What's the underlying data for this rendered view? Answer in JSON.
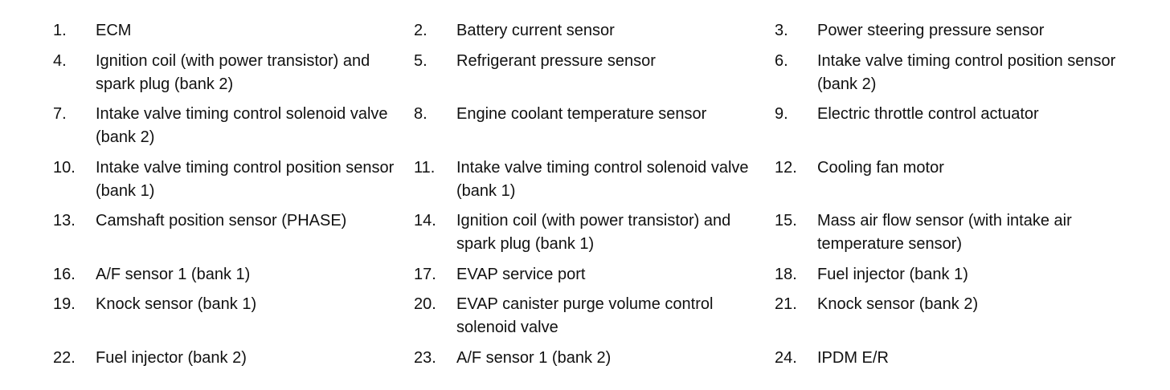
{
  "legend": {
    "items": [
      {
        "number": "1.",
        "label": "ECM"
      },
      {
        "number": "2.",
        "label": "Battery current sensor"
      },
      {
        "number": "3.",
        "label": "Power steering pressure sensor"
      },
      {
        "number": "4.",
        "label": "Ignition coil (with power transistor) and spark plug (bank 2)"
      },
      {
        "number": "5.",
        "label": "Refrigerant pressure sensor"
      },
      {
        "number": "6.",
        "label": "Intake valve timing control position sensor (bank 2)"
      },
      {
        "number": "7.",
        "label": "Intake valve timing control solenoid valve (bank 2)"
      },
      {
        "number": "8.",
        "label": "Engine coolant temperature sensor"
      },
      {
        "number": "9.",
        "label": "Electric throttle control actuator"
      },
      {
        "number": "10.",
        "label": "Intake valve timing control position sensor (bank 1)"
      },
      {
        "number": "11.",
        "label": "Intake valve timing control solenoid valve (bank 1)"
      },
      {
        "number": "12.",
        "label": "Cooling fan motor"
      },
      {
        "number": "13.",
        "label": "Camshaft position sensor (PHASE)"
      },
      {
        "number": "14.",
        "label": "Ignition coil (with power transistor) and spark plug (bank 1)"
      },
      {
        "number": "15.",
        "label": "Mass air flow sensor (with intake air temperature sensor)"
      },
      {
        "number": "16.",
        "label": "A/F sensor 1 (bank 1)"
      },
      {
        "number": "17.",
        "label": "EVAP service port"
      },
      {
        "number": "18.",
        "label": "Fuel injector (bank 1)"
      },
      {
        "number": "19.",
        "label": "Knock sensor (bank 1)"
      },
      {
        "number": "20.",
        "label": "EVAP canister purge volume control solenoid valve"
      },
      {
        "number": "21.",
        "label": "Knock sensor (bank 2)"
      },
      {
        "number": "22.",
        "label": "Fuel injector (bank 2)"
      },
      {
        "number": "23.",
        "label": "A/F sensor 1 (bank 2)"
      },
      {
        "number": "24.",
        "label": "IPDM E/R"
      }
    ]
  }
}
